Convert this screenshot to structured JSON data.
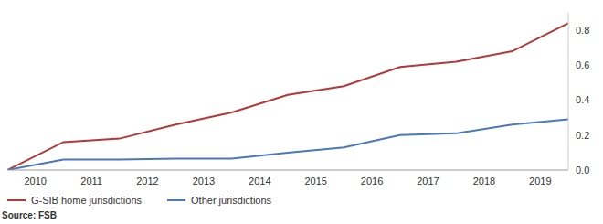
{
  "chart_data": {
    "type": "line",
    "x": [
      2010,
      2011,
      2012,
      2013,
      2014,
      2015,
      2016,
      2017,
      2018,
      2019,
      2020
    ],
    "series": [
      {
        "name": "G-SIB home jurisdictions",
        "color": "#b03a3a",
        "values": [
          0,
          0.16,
          0.18,
          0.26,
          0.33,
          0.43,
          0.48,
          0.59,
          0.62,
          0.68,
          0.84
        ]
      },
      {
        "name": "Other jurisdictions",
        "color": "#4a78b8",
        "values": [
          0,
          0.06,
          0.06,
          0.065,
          0.065,
          0.1,
          0.13,
          0.2,
          0.21,
          0.26,
          0.29
        ]
      }
    ],
    "xlim": [
      2010,
      2020
    ],
    "xticks": [
      {
        "value": 2010.5,
        "label": "2010"
      },
      {
        "value": 2011.5,
        "label": "2011"
      },
      {
        "value": 2012.5,
        "label": "2012"
      },
      {
        "value": 2013.5,
        "label": "2013"
      },
      {
        "value": 2014.5,
        "label": "2014"
      },
      {
        "value": 2015.5,
        "label": "2015"
      },
      {
        "value": 2016.5,
        "label": "2016"
      },
      {
        "value": 2017.5,
        "label": "2017"
      },
      {
        "value": 2018.5,
        "label": "2018"
      },
      {
        "value": 2019.5,
        "label": "2019"
      }
    ],
    "ylim": [
      0,
      0.9
    ],
    "yticks": [
      {
        "value": 0,
        "label": "0.0"
      },
      0.2,
      0.4,
      0.6,
      0.8
    ],
    "grid": false,
    "legend": "bottom left",
    "source": "Source: FSB"
  }
}
